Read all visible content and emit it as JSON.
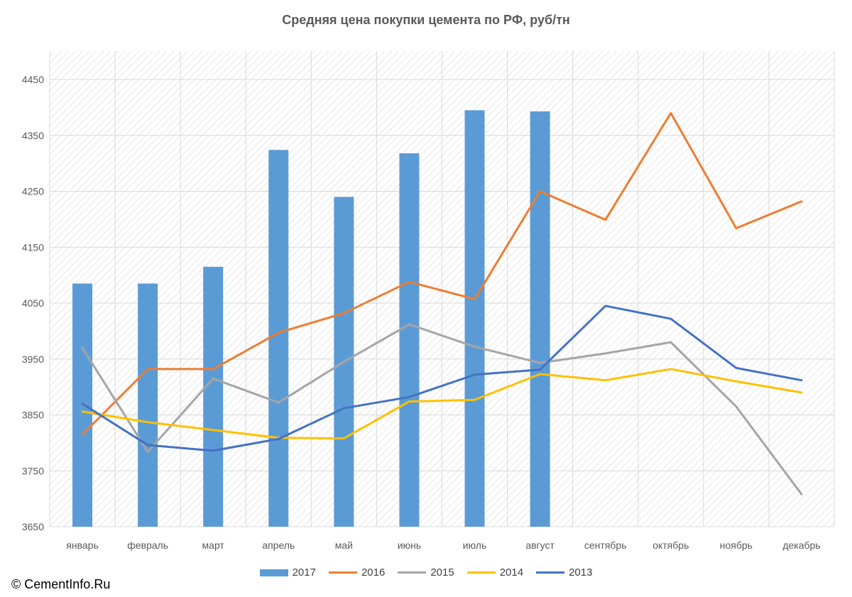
{
  "chart_data": {
    "type": "bar",
    "title": "Средняя цена покупки цемента по РФ, руб/тн",
    "categories": [
      "январь",
      "февраль",
      "март",
      "апрель",
      "май",
      "июнь",
      "июль",
      "август",
      "сентябрь",
      "октябрь",
      "ноябрь",
      "декабрь"
    ],
    "ylim": [
      3650,
      4500
    ],
    "yticks": [
      3650,
      3750,
      3850,
      3950,
      4050,
      4150,
      4250,
      4350,
      4450
    ],
    "grid": true,
    "legend_position": "bottom",
    "series": [
      {
        "name": "2017",
        "type": "bar",
        "color": "#5B9BD5",
        "values": [
          4085,
          4085,
          4115,
          4324,
          4240,
          4318,
          4395,
          4393,
          null,
          null,
          null,
          null
        ]
      },
      {
        "name": "2016",
        "type": "line",
        "color": "#ED7D31",
        "values": [
          3815,
          3932,
          3932,
          3997,
          4032,
          4088,
          4057,
          4250,
          4199,
          4390,
          4184,
          4232
        ]
      },
      {
        "name": "2015",
        "type": "line",
        "color": "#A5A5A5",
        "values": [
          3970,
          3784,
          3915,
          3872,
          3945,
          4012,
          3972,
          3943,
          3960,
          3980,
          3865,
          3708
        ]
      },
      {
        "name": "2014",
        "type": "line",
        "color": "#FFC000",
        "values": [
          3856,
          3837,
          3823,
          3809,
          3808,
          3874,
          3877,
          3923,
          3912,
          3932,
          3910,
          3890
        ]
      },
      {
        "name": "2013",
        "type": "line",
        "color": "#4472C4",
        "values": [
          3870,
          3796,
          3786,
          3807,
          3862,
          3882,
          3922,
          3931,
          4045,
          4022,
          3934,
          3912
        ]
      }
    ]
  },
  "footer": {
    "copyright": "© CementInfo.Ru"
  }
}
